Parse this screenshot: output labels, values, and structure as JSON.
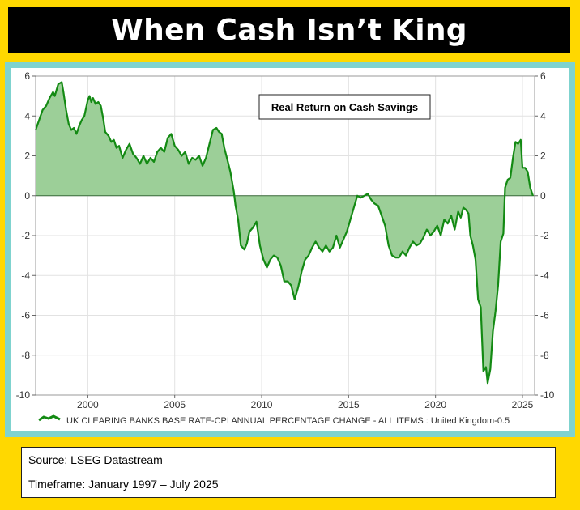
{
  "title": "When Cash Isn’t King",
  "footer": {
    "source": "Source:  LSEG Datastream",
    "timeframe": "Timeframe: January 1997 – July 2025"
  },
  "chart_data": {
    "type": "area",
    "title": "Real Return on Cash Savings",
    "xlabel": "",
    "ylabel": "",
    "xlim": [
      1997.0,
      2025.7
    ],
    "ylim": [
      -10,
      6
    ],
    "x_ticks": [
      2000,
      2005,
      2010,
      2015,
      2020,
      2025
    ],
    "y_ticks": [
      -10,
      -8,
      -6,
      -4,
      -2,
      0,
      2,
      4,
      6
    ],
    "grid": true,
    "legend_position": "bottom",
    "colors": {
      "line": "#138A13",
      "fill": "#9CCF98"
    },
    "series": [
      {
        "name": "UK CLEARING BANKS BASE RATE-CPI ANNUAL PERCENTAGE CHANGE - ALL ITEMS : United Kingdom-0.5",
        "x": [
          1997.0,
          1997.2,
          1997.4,
          1997.6,
          1997.8,
          1998.0,
          1998.1,
          1998.3,
          1998.5,
          1998.6,
          1998.75,
          1998.9,
          1999.05,
          1999.2,
          1999.35,
          1999.5,
          1999.65,
          1999.8,
          2000.0,
          2000.1,
          2000.2,
          2000.3,
          2000.45,
          2000.6,
          2000.75,
          2000.9,
          2001.0,
          2001.2,
          2001.35,
          2001.5,
          2001.65,
          2001.8,
          2002.0,
          2002.2,
          2002.4,
          2002.6,
          2002.8,
          2003.0,
          2003.2,
          2003.4,
          2003.6,
          2003.8,
          2004.0,
          2004.2,
          2004.4,
          2004.6,
          2004.8,
          2005.0,
          2005.2,
          2005.4,
          2005.6,
          2005.8,
          2006.0,
          2006.2,
          2006.4,
          2006.6,
          2006.8,
          2007.0,
          2007.2,
          2007.4,
          2007.55,
          2007.7,
          2007.85,
          2008.0,
          2008.2,
          2008.4,
          2008.5,
          2008.65,
          2008.8,
          2009.0,
          2009.15,
          2009.3,
          2009.5,
          2009.7,
          2009.9,
          2010.1,
          2010.3,
          2010.5,
          2010.7,
          2010.9,
          2011.1,
          2011.3,
          2011.5,
          2011.7,
          2011.9,
          2012.1,
          2012.3,
          2012.5,
          2012.7,
          2012.9,
          2013.1,
          2013.3,
          2013.5,
          2013.7,
          2013.9,
          2014.1,
          2014.3,
          2014.5,
          2014.7,
          2014.9,
          2015.1,
          2015.3,
          2015.5,
          2015.7,
          2015.9,
          2016.1,
          2016.3,
          2016.5,
          2016.7,
          2016.9,
          2017.1,
          2017.3,
          2017.5,
          2017.7,
          2017.9,
          2018.1,
          2018.3,
          2018.5,
          2018.7,
          2018.9,
          2019.1,
          2019.3,
          2019.5,
          2019.7,
          2019.9,
          2020.1,
          2020.3,
          2020.5,
          2020.7,
          2020.9,
          2021.1,
          2021.3,
          2021.45,
          2021.6,
          2021.75,
          2021.9,
          2022.0,
          2022.15,
          2022.3,
          2022.45,
          2022.6,
          2022.75,
          2022.9,
          2023.0,
          2023.15,
          2023.3,
          2023.45,
          2023.6,
          2023.75,
          2023.9,
          2024.0,
          2024.15,
          2024.3,
          2024.45,
          2024.6,
          2024.75,
          2024.9,
          2025.0,
          2025.15,
          2025.3,
          2025.45,
          2025.6
        ],
        "y": [
          3.3,
          3.8,
          4.3,
          4.5,
          4.9,
          5.2,
          5.0,
          5.6,
          5.7,
          5.2,
          4.3,
          3.6,
          3.3,
          3.4,
          3.1,
          3.5,
          3.8,
          4.0,
          4.8,
          5.0,
          4.7,
          4.9,
          4.6,
          4.7,
          4.5,
          3.8,
          3.2,
          3.0,
          2.7,
          2.8,
          2.4,
          2.5,
          1.9,
          2.3,
          2.6,
          2.1,
          1.9,
          1.6,
          2.0,
          1.6,
          1.9,
          1.7,
          2.2,
          2.4,
          2.2,
          2.9,
          3.1,
          2.5,
          2.3,
          2.0,
          2.2,
          1.6,
          1.9,
          1.8,
          2.0,
          1.5,
          1.9,
          2.6,
          3.3,
          3.4,
          3.2,
          3.1,
          2.4,
          1.9,
          1.2,
          0.2,
          -0.5,
          -1.2,
          -2.5,
          -2.7,
          -2.4,
          -1.8,
          -1.6,
          -1.3,
          -2.5,
          -3.2,
          -3.6,
          -3.2,
          -3.0,
          -3.1,
          -3.5,
          -4.3,
          -4.3,
          -4.5,
          -5.2,
          -4.6,
          -3.8,
          -3.2,
          -3.0,
          -2.6,
          -2.3,
          -2.6,
          -2.8,
          -2.5,
          -2.8,
          -2.6,
          -2.0,
          -2.6,
          -2.2,
          -1.8,
          -1.2,
          -0.6,
          0.0,
          -0.1,
          0.0,
          0.1,
          -0.2,
          -0.4,
          -0.5,
          -1.0,
          -1.5,
          -2.5,
          -3.0,
          -3.1,
          -3.1,
          -2.8,
          -3.0,
          -2.6,
          -2.3,
          -2.5,
          -2.4,
          -2.1,
          -1.7,
          -2.0,
          -1.8,
          -1.5,
          -2.0,
          -1.2,
          -1.4,
          -1.0,
          -1.7,
          -0.8,
          -1.1,
          -0.6,
          -0.7,
          -0.9,
          -2.0,
          -2.5,
          -3.2,
          -5.2,
          -5.6,
          -8.8,
          -8.6,
          -9.4,
          -8.7,
          -6.8,
          -5.8,
          -4.5,
          -2.3,
          -1.9,
          0.4,
          0.8,
          0.9,
          1.9,
          2.7,
          2.6,
          2.8,
          1.4,
          1.4,
          1.2,
          0.4,
          0.0
        ]
      }
    ]
  }
}
